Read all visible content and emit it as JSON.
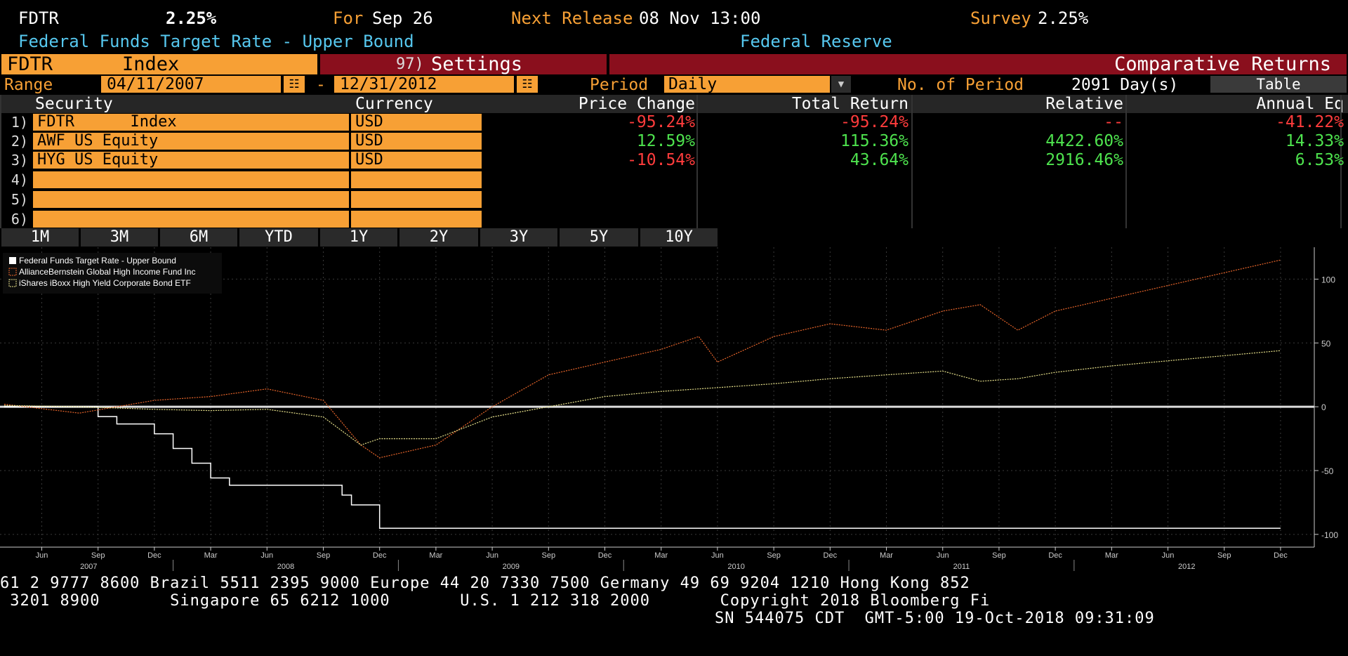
{
  "top": {
    "ticker": "FDTR",
    "value": "2.25%",
    "for_label": "For",
    "for_date": "Sep 26",
    "next_release_label": "Next Release",
    "next_release": "08 Nov 13:00",
    "survey_label": "Survey",
    "survey_value": "2.25%",
    "description": "Federal Funds Target Rate - Upper Bound",
    "source": "Federal Reserve"
  },
  "toolbar": {
    "security": "FDTR",
    "security_type": "Index",
    "settings_num": "97)",
    "settings_label": "Settings",
    "function_title": "Comparative Returns"
  },
  "range": {
    "label": "Range",
    "start": "04/11/2007",
    "separator": "-",
    "end": "12/31/2012",
    "period_label": "Period",
    "period_value": "Daily",
    "num_period_label": "No. of Period",
    "num_period_value": "2091 Day(s)",
    "table_button": "Table"
  },
  "table": {
    "headers": {
      "security": "Security",
      "currency": "Currency",
      "price_change": "Price Change",
      "total_return": "Total Return",
      "relative": "Relative",
      "annual": "Annual Eq"
    },
    "rows": [
      {
        "num": "1)",
        "security": "FDTR      Index",
        "currency": "USD",
        "price_change": "-95.24%",
        "total_return": "-95.24%",
        "relative": "--",
        "annual": "-41.22%"
      },
      {
        "num": "2)",
        "security": "AWF US Equity",
        "currency": "USD",
        "price_change": "12.59%",
        "total_return": "115.36%",
        "relative": "4422.60%",
        "annual": "14.33%"
      },
      {
        "num": "3)",
        "security": "HYG US Equity",
        "currency": "USD",
        "price_change": "-10.54%",
        "total_return": "43.64%",
        "relative": "2916.46%",
        "annual": "6.53%"
      },
      {
        "num": "4)",
        "security": "",
        "currency": "",
        "price_change": "",
        "total_return": "",
        "relative": "",
        "annual": ""
      },
      {
        "num": "5)",
        "security": "",
        "currency": "",
        "price_change": "",
        "total_return": "",
        "relative": "",
        "annual": ""
      },
      {
        "num": "6)",
        "security": "",
        "currency": "",
        "price_change": "",
        "total_return": "",
        "relative": "",
        "annual": ""
      }
    ]
  },
  "periods": [
    "1M",
    "3M",
    "6M",
    "YTD",
    "1Y",
    "2Y",
    "3Y",
    "5Y",
    "10Y"
  ],
  "colors": {
    "orange": "#f7a035",
    "red_bar": "#8a0f1d",
    "cyan": "#56c7ee",
    "positive": "#4ee34e",
    "negative": "#ff3c3c",
    "series_fdtr": "#ffffff",
    "series_awf": "#e8652a",
    "series_hyg": "#e6e08a"
  },
  "chart_data": {
    "type": "line",
    "legend": [
      "Federal Funds Target Rate - Upper Bound",
      "AllianceBernstein Global High Income Fund Inc",
      "iShares iBoxx High Yield Corporate Bond ETF"
    ],
    "legend_position": "top-left",
    "ylim": [
      -110,
      125
    ],
    "yticks": [
      100,
      50,
      0,
      -50,
      -100
    ],
    "grid": true,
    "x_month_ticks": [
      "Jun",
      "Sep",
      "Dec",
      "Mar",
      "Jun",
      "Sep",
      "Dec",
      "Mar",
      "Jun",
      "Sep",
      "Dec",
      "Mar",
      "Jun",
      "Sep",
      "Dec",
      "Mar",
      "Jun",
      "Sep",
      "Dec",
      "Mar",
      "Jun",
      "Sep",
      "Dec"
    ],
    "x_year_labels": [
      "2007",
      "2008",
      "2009",
      "2010",
      "2011",
      "2012"
    ],
    "series": [
      {
        "name": "Federal Funds Target Rate - Upper Bound",
        "x": [
          "2007-04",
          "2007-09",
          "2007-10",
          "2007-12",
          "2008-01",
          "2008-02",
          "2008-03",
          "2008-04",
          "2008-10",
          "2008-10b",
          "2008-12",
          "2012-12"
        ],
        "values": [
          0,
          -7.7,
          -13.5,
          -21.2,
          -32.7,
          -44.2,
          -55.8,
          -61.5,
          -69.2,
          -76.9,
          -95.2,
          -95.2
        ]
      },
      {
        "name": "AllianceBernstein Global High Income Fund Inc",
        "x": [
          "2007-04",
          "2007-08",
          "2007-12",
          "2008-03",
          "2008-06",
          "2008-09",
          "2008-11",
          "2008-12",
          "2009-03",
          "2009-06",
          "2009-09",
          "2009-12",
          "2010-03",
          "2010-05",
          "2010-06",
          "2010-09",
          "2010-12",
          "2011-03",
          "2011-06",
          "2011-08",
          "2011-10",
          "2011-12",
          "2012-03",
          "2012-06",
          "2012-09",
          "2012-12"
        ],
        "values": [
          2,
          -5,
          5,
          8,
          14,
          5,
          -30,
          -40,
          -30,
          0,
          25,
          35,
          45,
          55,
          35,
          55,
          65,
          60,
          75,
          80,
          60,
          75,
          85,
          95,
          105,
          115
        ]
      },
      {
        "name": "iShares iBoxx High Yield Corporate Bond ETF",
        "x": [
          "2007-04",
          "2007-08",
          "2007-12",
          "2008-03",
          "2008-06",
          "2008-09",
          "2008-11",
          "2008-12",
          "2009-03",
          "2009-06",
          "2009-09",
          "2009-12",
          "2010-03",
          "2010-06",
          "2010-09",
          "2010-12",
          "2011-03",
          "2011-06",
          "2011-08",
          "2011-10",
          "2011-12",
          "2012-03",
          "2012-06",
          "2012-09",
          "2012-12"
        ],
        "values": [
          1,
          0,
          -2,
          -3,
          -2,
          -8,
          -30,
          -25,
          -25,
          -8,
          0,
          8,
          12,
          15,
          18,
          22,
          25,
          28,
          20,
          22,
          27,
          32,
          36,
          40,
          44
        ]
      }
    ]
  },
  "footer": {
    "line1": "61 2 9777 8600 Brazil 5511 2395 9000 Europe 44 20 7330 7500 Germany 49 69 9204 1210 Hong Kong 852",
    "line2": " 3201 8900       Singapore 65 6212 1000       U.S. 1 212 318 2000       Copyright 2018 Bloomberg Fi",
    "line3": "SN 544075 CDT  GMT-5:00 19-Oct-2018 09:31:09"
  }
}
